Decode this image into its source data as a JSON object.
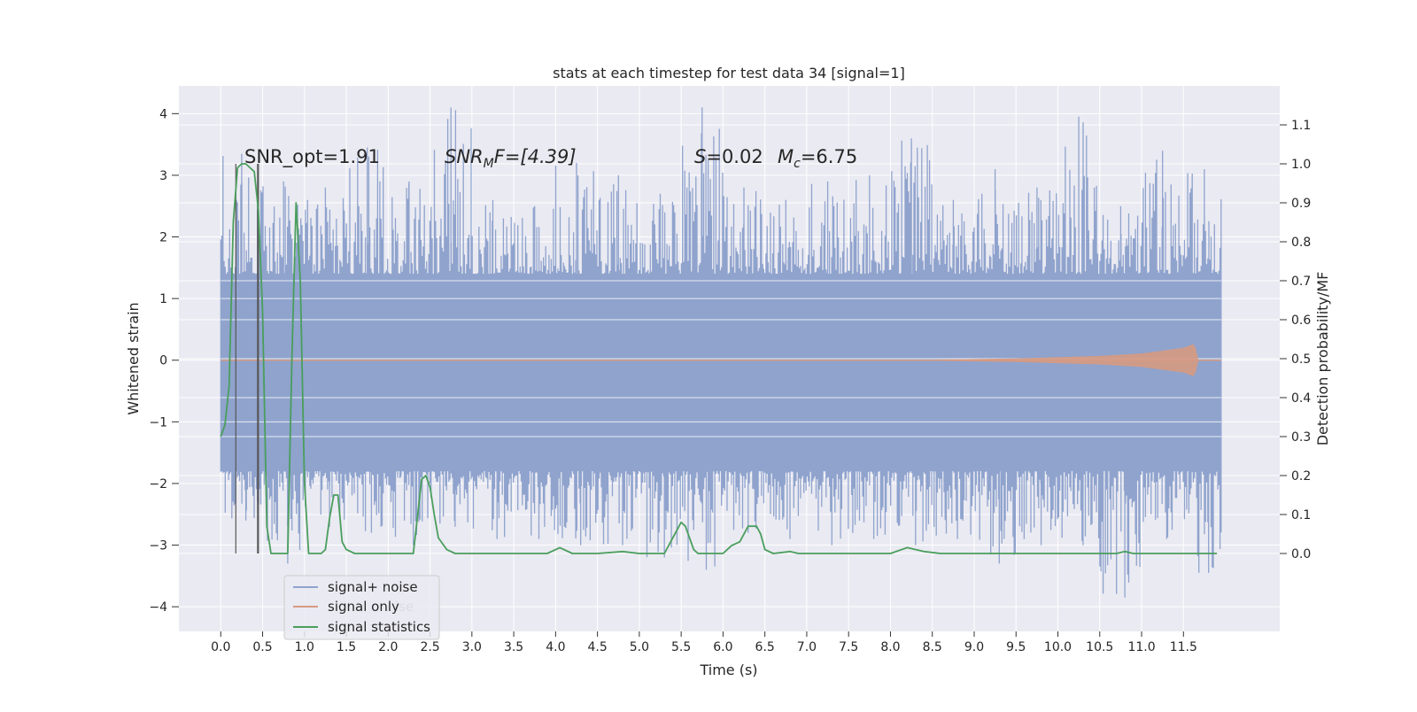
{
  "chart_data": {
    "type": "line",
    "title": "stats at each timestep for test data 34 [signal=1]",
    "xlabel": "Time (s)",
    "ylabel_left": "Whitened strain",
    "ylabel_right": "Detection probability/MF",
    "xlim": [
      -0.5,
      12.65
    ],
    "ylim_left": [
      -4.4,
      4.45
    ],
    "ylim_right": [
      -0.2,
      1.2
    ],
    "x_ticks": [
      "0.0",
      "0.5",
      "1.0",
      "1.5",
      "2.0",
      "2.5",
      "3.0",
      "3.5",
      "4.0",
      "4.5",
      "5.0",
      "5.5",
      "6.0",
      "6.5",
      "7.0",
      "7.5",
      "8.0",
      "8.5",
      "9.0",
      "9.5",
      "10.0",
      "10.5",
      "11.0",
      "11.5"
    ],
    "y_ticks_left": [
      "−4",
      "−3",
      "−2",
      "−1",
      "0",
      "1",
      "2",
      "3",
      "4"
    ],
    "y_ticks_right": [
      "0.0",
      "0.1",
      "0.2",
      "0.3",
      "0.4",
      "0.5",
      "0.6",
      "0.7",
      "0.8",
      "0.9",
      "1.0",
      "1.1"
    ],
    "grid": true,
    "legend_position": "lower-left",
    "legend": [
      "signal+ noise",
      "signal only",
      "signal statistics"
    ],
    "legend_ghost": "ise",
    "annotations": {
      "snr_opt": "SNR_opt=1.91",
      "snr_mf_main": "SNR",
      "snr_mf_sub": "M",
      "snr_mf_rest": "F=[4.39]",
      "s_main": "S",
      "s_rest": "=0.02",
      "mc_main": "M",
      "mc_sub": "c",
      "mc_rest": "=6.75"
    },
    "colors": {
      "noise": "#8fa3cd",
      "signal": "#d69a82",
      "stats": "#4a9e5c",
      "plot_bg": "#eaeaf2",
      "grid": "#ffffff",
      "vlines": "#555555"
    },
    "series": [
      {
        "name": "signal statistics",
        "axis": "right",
        "x": [
          0.0,
          0.05,
          0.1,
          0.15,
          0.2,
          0.25,
          0.3,
          0.35,
          0.4,
          0.45,
          0.5,
          0.55,
          0.6,
          0.65,
          0.7,
          0.75,
          0.8,
          0.85,
          0.9,
          0.95,
          1.0,
          1.05,
          1.1,
          1.15,
          1.2,
          1.25,
          1.3,
          1.35,
          1.4,
          1.45,
          1.5,
          1.6,
          1.8,
          2.0,
          2.2,
          2.3,
          2.4,
          2.45,
          2.5,
          2.55,
          2.6,
          2.7,
          2.8,
          3.0,
          3.5,
          3.9,
          4.05,
          4.2,
          4.5,
          4.8,
          5.0,
          5.3,
          5.45,
          5.5,
          5.55,
          5.6,
          5.65,
          5.7,
          5.8,
          6.0,
          6.1,
          6.2,
          6.3,
          6.4,
          6.45,
          6.5,
          6.6,
          6.8,
          6.9,
          7.0,
          7.5,
          8.0,
          8.2,
          8.4,
          8.6,
          9.0,
          10.0,
          10.7,
          10.8,
          10.9,
          11.0,
          11.5,
          11.9
        ],
        "values": [
          0.3,
          0.33,
          0.43,
          0.85,
          0.99,
          1.0,
          1.0,
          0.99,
          0.98,
          0.88,
          0.62,
          0.07,
          0.0,
          0.0,
          0.0,
          0.0,
          0.0,
          0.5,
          0.9,
          0.7,
          0.18,
          0.0,
          0.0,
          0.0,
          0.0,
          0.01,
          0.09,
          0.15,
          0.15,
          0.03,
          0.01,
          0.0,
          0.0,
          0.0,
          0.0,
          0.0,
          0.19,
          0.2,
          0.17,
          0.1,
          0.04,
          0.01,
          0.0,
          0.0,
          0.0,
          0.0,
          0.015,
          0.0,
          0.0,
          0.005,
          0.0,
          0.0,
          0.06,
          0.08,
          0.07,
          0.04,
          0.01,
          0.0,
          0.0,
          0.0,
          0.02,
          0.03,
          0.07,
          0.07,
          0.05,
          0.01,
          0.0,
          0.005,
          0.0,
          0.0,
          0.0,
          0.0,
          0.015,
          0.005,
          0.0,
          0.0,
          0.0,
          0.0,
          0.005,
          0.0,
          0.0,
          0.0,
          0.0
        ]
      },
      {
        "name": "signal only",
        "axis": "left",
        "x": [
          0.0,
          8.0,
          9.5,
          10.5,
          11.0,
          11.5,
          11.62,
          11.65,
          11.68,
          11.95
        ],
        "amplitude": [
          0.0,
          0.0,
          0.03,
          0.07,
          0.11,
          0.2,
          0.26,
          0.18,
          0.0,
          0.0
        ]
      },
      {
        "name": "signal+ noise",
        "axis": "left",
        "x_range": [
          0.0,
          11.95
        ],
        "band": [
          -1.8,
          1.4
        ],
        "peak_max": [
          3.35,
          2.9,
          2.8,
          3.45,
          2.9,
          4.1,
          2.6,
          2.5,
          3.2,
          3.0,
          2.7,
          4.1,
          2.8,
          2.6,
          2.9,
          3.0,
          3.6,
          2.6,
          3.1,
          2.8,
          3.95,
          2.5,
          3.4,
          3.1
        ],
        "trough_min": [
          -2.6,
          -3.3,
          -2.7,
          -2.8,
          -3.0,
          -2.7,
          -2.9,
          -2.9,
          -3.0,
          -3.0,
          -3.2,
          -3.4,
          -2.8,
          -2.9,
          -3.0,
          -2.9,
          -3.0,
          -2.9,
          -3.3,
          -3.0,
          -3.0,
          -3.85,
          -2.9,
          -3.45
        ]
      }
    ],
    "vertical_lines": {
      "x": [
        0.18,
        0.44,
        0.45
      ],
      "from_right": 0.0,
      "to_right": 1.0
    }
  }
}
